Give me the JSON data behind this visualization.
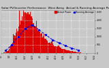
{
  "title": "Solar PV/Inverter Performance  West Array  Actual & Running Average Power Output",
  "bg_color": "#c8c8c8",
  "plot_bg_color": "#c8c8c8",
  "bar_color": "#dd0000",
  "avg_line_color": "#0000dd",
  "avg_marker": "s",
  "avg_marker_size": 1.2,
  "grid_color": "#ffffff",
  "title_fontsize": 3.2,
  "tick_fontsize": 2.2,
  "ylim_max": 2600,
  "bar_heights": [
    5,
    8,
    12,
    20,
    35,
    60,
    90,
    130,
    190,
    260,
    340,
    430,
    540,
    660,
    800,
    980,
    1100,
    1250,
    1380,
    1480,
    1580,
    1700,
    1820,
    1950,
    2050,
    2150,
    2250,
    2350,
    2400,
    2450,
    2500,
    2480,
    2420,
    2350,
    2200,
    2100,
    2000,
    1900,
    1800,
    1720,
    1640,
    1560,
    1480,
    1400,
    1320,
    1240,
    1160,
    1090,
    1030,
    990,
    940,
    890,
    840,
    800,
    760,
    710,
    670,
    630,
    590,
    555,
    525,
    495,
    465,
    445,
    425,
    405,
    385,
    365,
    345,
    325,
    305,
    285,
    265,
    248,
    232,
    212,
    197,
    182,
    167,
    152,
    140,
    127,
    114,
    102,
    91,
    81,
    71,
    63,
    55,
    47,
    41,
    35,
    29,
    24,
    19,
    15,
    11,
    8,
    5,
    3,
    1,
    1,
    0,
    0,
    0,
    0,
    0,
    0,
    0,
    0
  ],
  "spike_indices": [
    4,
    14,
    21,
    26,
    34,
    41,
    50,
    59,
    67
  ],
  "spike_multipliers": [
    1.45,
    1.5,
    1.4,
    1.3,
    1.35,
    1.3,
    1.25,
    1.2,
    1.15
  ],
  "avg_points_x": [
    5,
    12,
    20,
    28,
    36,
    44,
    52,
    60,
    68,
    75,
    82,
    90
  ],
  "avg_points_y": [
    150,
    500,
    1000,
    1500,
    1700,
    1400,
    1100,
    800,
    600,
    450,
    300,
    180
  ],
  "y_ticks": [
    0,
    500,
    1000,
    1500,
    2000,
    2500
  ],
  "x_labels": [
    "3/1",
    "3/8",
    "3/15",
    "3/22",
    "3/29",
    "4/5",
    "4/12",
    "4/19",
    "4/26",
    "5/3",
    "5/10",
    "5/17",
    "5/24"
  ],
  "legend_entries": [
    "Actual Power",
    "Running Average"
  ],
  "legend_colors": [
    "#dd0000",
    "#0000dd"
  ]
}
